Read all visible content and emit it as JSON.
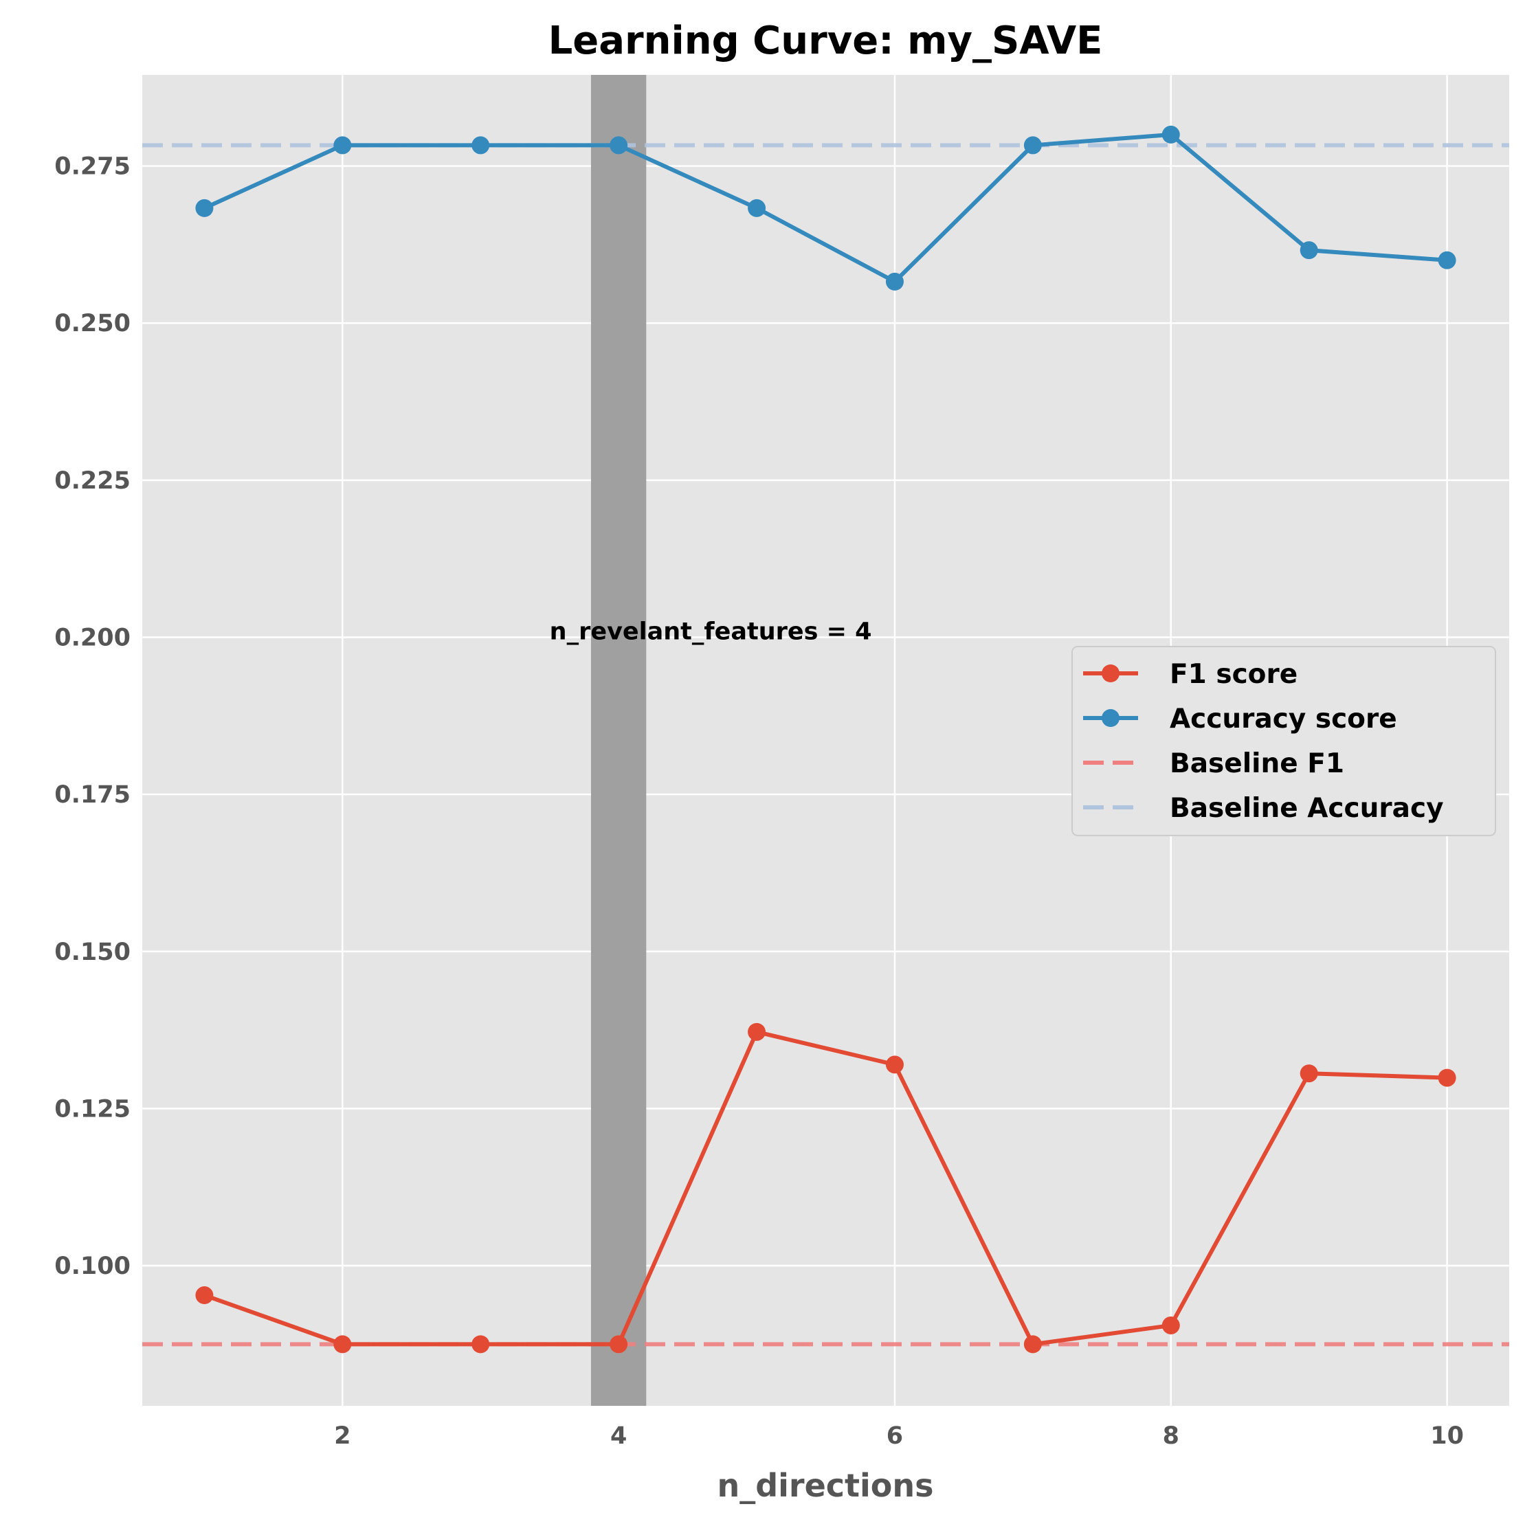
{
  "chart_data": {
    "type": "line",
    "title": "Learning Curve: my_SAVE",
    "xlabel": "n_directions",
    "ylabel": "",
    "xlim": [
      0.55,
      10.45
    ],
    "ylim": [
      0.0777,
      0.2895
    ],
    "xticks": [
      2,
      4,
      6,
      8,
      10
    ],
    "xtick_labels": [
      "2",
      "4",
      "6",
      "8",
      "10"
    ],
    "yticks": [
      0.1,
      0.125,
      0.15,
      0.175,
      0.2,
      0.225,
      0.25,
      0.275
    ],
    "ytick_labels": [
      "0.100",
      "0.125",
      "0.150",
      "0.175",
      "0.200",
      "0.225",
      "0.250",
      "0.275"
    ],
    "grid": true,
    "legend_position": "center-right",
    "x": [
      1,
      2,
      3,
      4,
      5,
      6,
      7,
      8,
      9,
      10
    ],
    "series": [
      {
        "name": "F1 score",
        "color": "#E24A33",
        "values": [
          0.0953,
          0.0875,
          0.0875,
          0.0875,
          0.1372,
          0.132,
          0.0875,
          0.0905,
          0.1306,
          0.1299
        ]
      },
      {
        "name": "Accuracy score",
        "color": "#348ABD",
        "values": [
          0.2683,
          0.2783,
          0.2783,
          0.2783,
          0.2683,
          0.2566,
          0.2783,
          0.28,
          0.2616,
          0.26
        ]
      }
    ],
    "baselines": [
      {
        "name": "Baseline F1",
        "color": "#F08080",
        "value": 0.0875
      },
      {
        "name": "Baseline Accuracy",
        "color": "#B0C4DE",
        "value": 0.2783
      }
    ],
    "highlight_band": {
      "x_from": 3.8,
      "x_to": 4.2,
      "color": "#A0A0A0"
    },
    "annotation": {
      "text": "n_revelant_features = 4",
      "x": 3.5,
      "y": 0.2
    },
    "colors": {
      "plot_bg": "#E5E5E5",
      "grid": "#FFFFFF",
      "tick_text": "#555555"
    }
  }
}
